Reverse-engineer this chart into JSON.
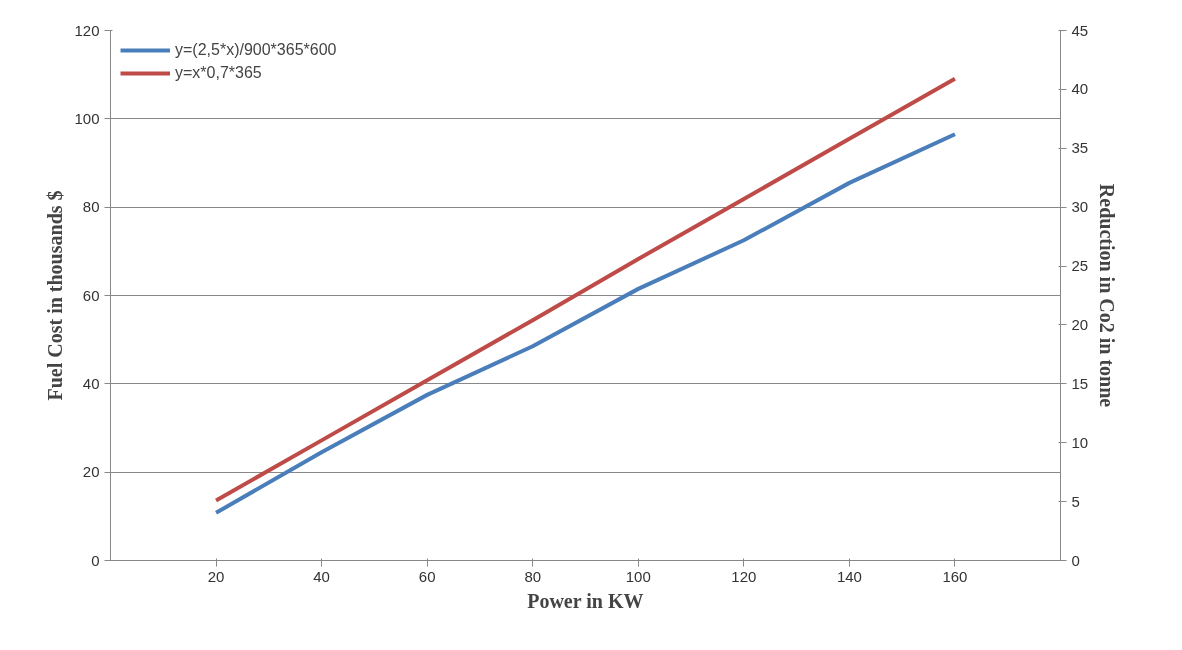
{
  "chart_data": {
    "type": "line",
    "xlabel": "Power in KW",
    "ylabel": "Fuel Cost in thousands $",
    "y2label": "Reduction in Co2 in tonne",
    "x": [
      20,
      40,
      60,
      80,
      100,
      120,
      140,
      160
    ],
    "series": [
      {
        "name": "y=(2,5*x)/900*365*600",
        "color": "#4a7ebb",
        "values": [
          10.8,
          24.5,
          37.5,
          48.5,
          61.5,
          72.5,
          85.5,
          96.5
        ]
      },
      {
        "name": "y=x*0,7*365",
        "color": "#be4b48",
        "axis": "y2",
        "values": [
          5.1,
          10.2,
          15.3,
          20.4,
          25.6,
          30.7,
          35.8,
          40.9
        ]
      }
    ],
    "xlim": [
      0,
      180
    ],
    "xticks": [
      20,
      40,
      60,
      80,
      100,
      120,
      140,
      160
    ],
    "ylim": [
      0,
      120
    ],
    "yticks": [
      0,
      20,
      40,
      60,
      80,
      100,
      120
    ],
    "y2lim": [
      0,
      45
    ],
    "y2ticks": [
      0,
      5,
      10,
      15,
      20,
      25,
      30,
      35,
      40,
      45
    ],
    "grid": "y",
    "legend": "top left",
    "marker": "none",
    "line_style": "solid"
  }
}
